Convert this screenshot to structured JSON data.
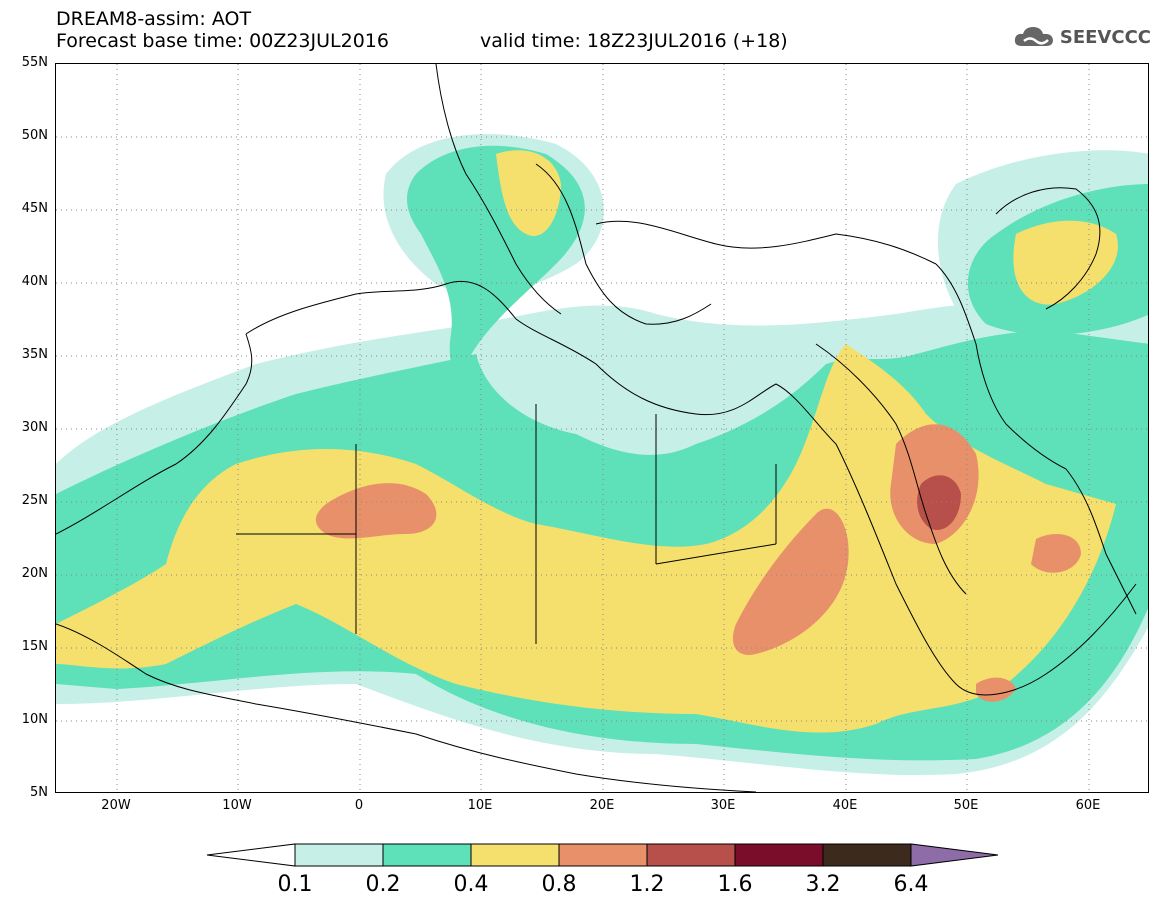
{
  "header": {
    "line1": "DREAM8-assim: AOT",
    "line2_left": "Forecast base time: 00Z23JUL2016",
    "line2_right": "valid time: 18Z23JUL2016 (+18)"
  },
  "logo": {
    "text": "SEEVCCC",
    "icon": "cloud-icon"
  },
  "map": {
    "variable": "AOT",
    "projection": "lat-lon",
    "lon_range": [
      -25,
      65
    ],
    "lat_range": [
      5,
      55
    ],
    "grid": "dotted",
    "lat_labels": [
      "55N",
      "50N",
      "45N",
      "40N",
      "35N",
      "30N",
      "25N",
      "20N",
      "15N",
      "10N",
      "5N"
    ],
    "lon_labels": [
      "20W",
      "10W",
      "0",
      "10E",
      "20E",
      "30E",
      "40E",
      "50E",
      "60E"
    ]
  },
  "colorbar": {
    "colors": [
      "#ffffff",
      "#c6efe8",
      "#5ee0b8",
      "#f5e06e",
      "#e8906a",
      "#b7504a",
      "#7a0d2a",
      "#3c2a1c",
      "#8e6ca8"
    ],
    "labels": [
      "0.1",
      "0.2",
      "0.4",
      "0.8",
      "1.2",
      "1.6",
      "3.2",
      "6.4"
    ]
  }
}
